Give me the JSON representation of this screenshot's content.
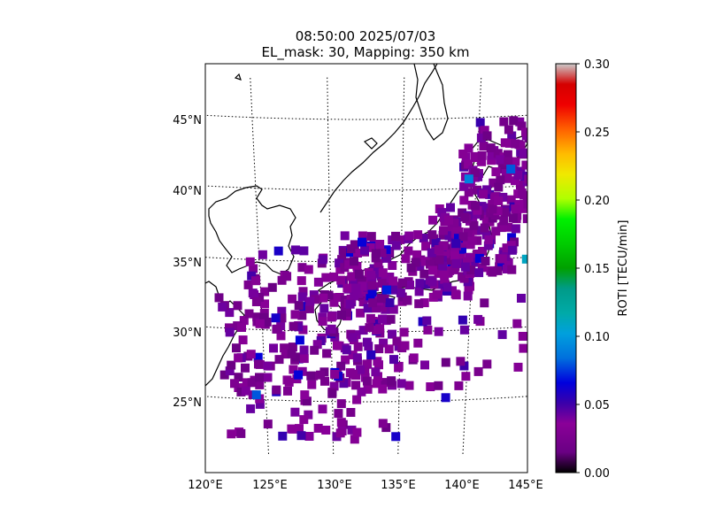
{
  "chart_data": {
    "type": "scatter",
    "title": [
      "08:50:00 2025/07/03",
      "EL_mask: 30, Mapping: 350 km"
    ],
    "xlabel": "",
    "ylabel": "",
    "x_ticks": [
      "120°E",
      "125°E",
      "130°E",
      "135°E",
      "140°E",
      "145°E"
    ],
    "y_ticks": [
      "25°N",
      "30°N",
      "35°N",
      "40°N",
      "45°N"
    ],
    "lon_range": [
      120,
      145
    ],
    "lat_range": [
      20,
      48
    ],
    "grid": true,
    "colorbar": {
      "label": "ROTI [TECU/min]",
      "range": [
        0.0,
        0.3
      ],
      "ticks": [
        "0.00",
        "0.05",
        "0.10",
        "0.15",
        "0.20",
        "0.25",
        "0.30"
      ],
      "colormap": "nipy_spectral"
    },
    "notable_points": [
      {
        "lon": 143.8,
        "lat": 35.2,
        "roti": 0.11
      },
      {
        "lon": 142.3,
        "lat": 41.5,
        "roti": 0.08
      },
      {
        "lon": 139.5,
        "lat": 40.8,
        "roti": 0.09
      },
      {
        "lon": 134.0,
        "lat": 33.0,
        "roti": 0.07
      },
      {
        "lon": 124.3,
        "lat": 25.5,
        "roti": 0.08
      },
      {
        "lon": 138.5,
        "lat": 25.3,
        "roti": 0.06
      },
      {
        "lon": 134.8,
        "lat": 23.0,
        "roti": 0.06
      },
      {
        "lon": 126.0,
        "lat": 31.0,
        "roti": 0.06
      }
    ]
  }
}
